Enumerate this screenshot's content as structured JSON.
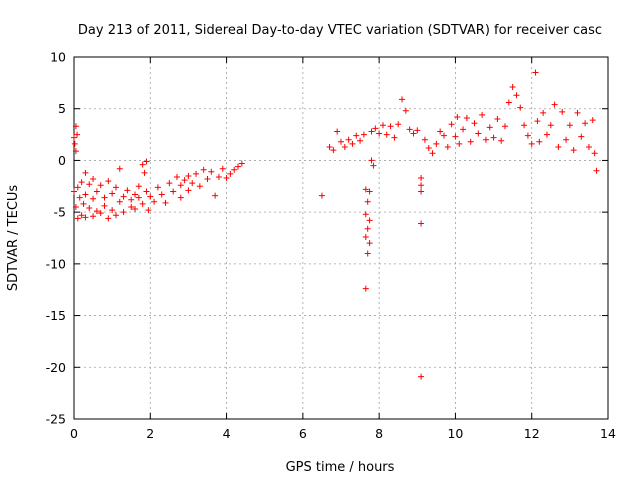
{
  "chart_data": {
    "type": "scatter",
    "title": "Day 213 of 2011, Sidereal Day-to-day VTEC variation (SDTVAR) for receiver casc",
    "xlabel": "GPS time / hours",
    "ylabel": "SDTVAR / TECUs",
    "xlim": [
      0,
      14
    ],
    "ylim": [
      -25,
      10
    ],
    "xticks": [
      "0",
      "2",
      "4",
      "6",
      "8",
      "10",
      "12",
      "14"
    ],
    "yticks": [
      "10",
      "5",
      "0",
      "-5",
      "-10",
      "-15",
      "-20",
      "-25"
    ],
    "grid": true,
    "marker": "+",
    "color": "#ff0000",
    "series": [
      {
        "name": "SDTVAR",
        "points": [
          [
            0.0,
            2.2
          ],
          [
            0.02,
            1.6
          ],
          [
            0.05,
            3.3
          ],
          [
            0.05,
            0.9
          ],
          [
            0.08,
            2.5
          ],
          [
            0.0,
            -3.0
          ],
          [
            0.05,
            -4.5
          ],
          [
            0.1,
            -5.6
          ],
          [
            0.1,
            -2.6
          ],
          [
            0.15,
            -3.6
          ],
          [
            0.2,
            -5.3
          ],
          [
            0.2,
            -2.1
          ],
          [
            0.25,
            -4.2
          ],
          [
            0.3,
            -1.2
          ],
          [
            0.3,
            -3.3
          ],
          [
            0.3,
            -5.5
          ],
          [
            0.4,
            -4.6
          ],
          [
            0.4,
            -2.3
          ],
          [
            0.5,
            -3.7
          ],
          [
            0.5,
            -5.4
          ],
          [
            0.5,
            -1.8
          ],
          [
            0.6,
            -3.0
          ],
          [
            0.6,
            -4.9
          ],
          [
            0.7,
            -2.4
          ],
          [
            0.7,
            -5.1
          ],
          [
            0.8,
            -3.6
          ],
          [
            0.8,
            -4.4
          ],
          [
            0.9,
            -5.6
          ],
          [
            0.9,
            -2.0
          ],
          [
            1.0,
            -3.2
          ],
          [
            1.0,
            -4.8
          ],
          [
            1.1,
            -2.6
          ],
          [
            1.1,
            -5.3
          ],
          [
            1.2,
            -0.8
          ],
          [
            1.2,
            -4.0
          ],
          [
            1.3,
            -3.5
          ],
          [
            1.3,
            -5.0
          ],
          [
            1.4,
            -2.9
          ],
          [
            1.5,
            -4.5
          ],
          [
            1.5,
            -3.8
          ],
          [
            1.6,
            -3.3
          ],
          [
            1.6,
            -4.7
          ],
          [
            1.7,
            -2.5
          ],
          [
            1.7,
            -3.6
          ],
          [
            1.8,
            -0.4
          ],
          [
            1.8,
            -4.2
          ],
          [
            1.85,
            -1.2
          ],
          [
            1.9,
            -0.1
          ],
          [
            1.9,
            -3.0
          ],
          [
            1.95,
            -4.8
          ],
          [
            2.0,
            -3.5
          ],
          [
            2.1,
            -4.0
          ],
          [
            2.2,
            -2.6
          ],
          [
            2.3,
            -3.3
          ],
          [
            2.4,
            -4.1
          ],
          [
            2.5,
            -2.2
          ],
          [
            2.6,
            -3.0
          ],
          [
            2.7,
            -1.6
          ],
          [
            2.8,
            -2.4
          ],
          [
            2.8,
            -3.6
          ],
          [
            2.9,
            -1.9
          ],
          [
            3.0,
            -1.5
          ],
          [
            3.0,
            -2.9
          ],
          [
            3.1,
            -2.2
          ],
          [
            3.2,
            -1.3
          ],
          [
            3.3,
            -2.5
          ],
          [
            3.4,
            -0.9
          ],
          [
            3.5,
            -1.8
          ],
          [
            3.6,
            -1.1
          ],
          [
            3.7,
            -3.4
          ],
          [
            3.8,
            -1.6
          ],
          [
            3.9,
            -0.8
          ],
          [
            4.0,
            -1.7
          ],
          [
            4.1,
            -1.3
          ],
          [
            4.2,
            -0.9
          ],
          [
            4.3,
            -0.6
          ],
          [
            4.4,
            -0.3
          ],
          [
            6.5,
            -3.4
          ],
          [
            6.7,
            1.3
          ],
          [
            6.8,
            1.0
          ],
          [
            6.9,
            2.8
          ],
          [
            7.0,
            1.8
          ],
          [
            7.1,
            1.3
          ],
          [
            7.2,
            2.0
          ],
          [
            7.3,
            1.6
          ],
          [
            7.4,
            2.4
          ],
          [
            7.5,
            1.9
          ],
          [
            7.6,
            2.5
          ],
          [
            7.65,
            -2.8
          ],
          [
            7.65,
            -5.2
          ],
          [
            7.65,
            -7.4
          ],
          [
            7.65,
            -12.4
          ],
          [
            7.7,
            -4.0
          ],
          [
            7.7,
            -6.6
          ],
          [
            7.7,
            -9.0
          ],
          [
            7.75,
            -3.0
          ],
          [
            7.75,
            -5.8
          ],
          [
            7.75,
            -8.0
          ],
          [
            7.8,
            2.8
          ],
          [
            7.8,
            0.0
          ],
          [
            7.85,
            -0.5
          ],
          [
            7.9,
            3.1
          ],
          [
            8.0,
            2.6
          ],
          [
            8.1,
            3.4
          ],
          [
            8.2,
            2.5
          ],
          [
            8.3,
            3.3
          ],
          [
            8.4,
            2.2
          ],
          [
            8.5,
            3.5
          ],
          [
            8.6,
            5.9
          ],
          [
            8.7,
            4.8
          ],
          [
            8.8,
            3.0
          ],
          [
            8.9,
            2.6
          ],
          [
            9.0,
            2.9
          ],
          [
            9.1,
            -1.7
          ],
          [
            9.1,
            -2.4
          ],
          [
            9.1,
            -3.0
          ],
          [
            9.1,
            -6.1
          ],
          [
            9.1,
            -20.9
          ],
          [
            9.2,
            2.0
          ],
          [
            9.3,
            1.2
          ],
          [
            9.4,
            0.7
          ],
          [
            9.5,
            1.6
          ],
          [
            9.6,
            2.8
          ],
          [
            9.7,
            2.4
          ],
          [
            9.8,
            1.3
          ],
          [
            9.9,
            3.5
          ],
          [
            10.0,
            2.3
          ],
          [
            10.05,
            4.2
          ],
          [
            10.1,
            1.6
          ],
          [
            10.2,
            3.0
          ],
          [
            10.3,
            4.1
          ],
          [
            10.4,
            1.8
          ],
          [
            10.5,
            3.6
          ],
          [
            10.6,
            2.6
          ],
          [
            10.7,
            4.4
          ],
          [
            10.8,
            2.0
          ],
          [
            10.9,
            3.2
          ],
          [
            11.0,
            2.2
          ],
          [
            11.1,
            4.0
          ],
          [
            11.2,
            1.9
          ],
          [
            11.3,
            3.3
          ],
          [
            11.4,
            5.6
          ],
          [
            11.5,
            7.1
          ],
          [
            11.6,
            6.3
          ],
          [
            11.7,
            5.1
          ],
          [
            11.8,
            3.4
          ],
          [
            11.9,
            2.4
          ],
          [
            12.0,
            1.6
          ],
          [
            12.1,
            8.5
          ],
          [
            12.15,
            3.8
          ],
          [
            12.2,
            1.8
          ],
          [
            12.3,
            4.6
          ],
          [
            12.4,
            2.5
          ],
          [
            12.5,
            3.4
          ],
          [
            12.6,
            5.4
          ],
          [
            12.7,
            1.3
          ],
          [
            12.8,
            4.7
          ],
          [
            12.9,
            2.0
          ],
          [
            13.0,
            3.4
          ],
          [
            13.1,
            1.0
          ],
          [
            13.2,
            4.6
          ],
          [
            13.3,
            2.3
          ],
          [
            13.4,
            3.6
          ],
          [
            13.5,
            1.3
          ],
          [
            13.6,
            3.9
          ],
          [
            13.65,
            0.7
          ],
          [
            13.7,
            -1.0
          ]
        ]
      }
    ]
  }
}
